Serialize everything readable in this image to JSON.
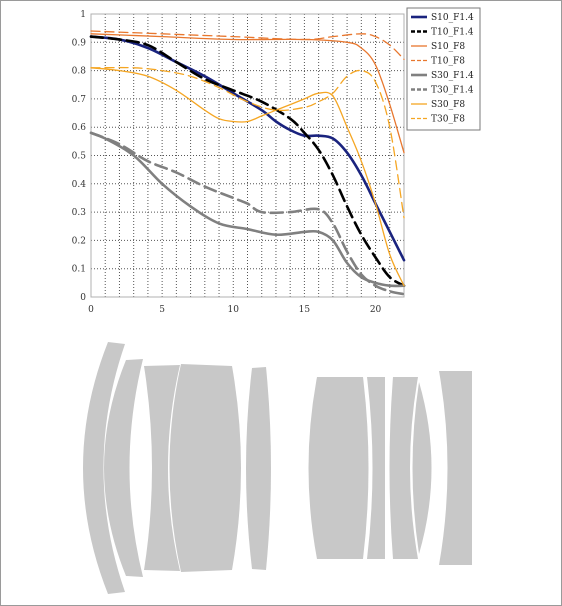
{
  "chart_data": {
    "type": "line",
    "title": "",
    "xlabel": "",
    "ylabel": "",
    "xlim": [
      0,
      22
    ],
    "ylim": [
      0,
      1
    ],
    "xticks": [
      0,
      5,
      10,
      15,
      20
    ],
    "yticks": [
      0,
      0.1,
      0.2,
      0.3,
      0.4,
      0.5,
      0.6,
      0.7,
      0.8,
      0.9,
      1
    ],
    "ytick_labels": [
      "0",
      "0.1",
      "0.2",
      "0.3",
      "0.4",
      "0.5",
      "0.6",
      "0.7",
      "0.8",
      "0.9",
      "1"
    ],
    "grid": "dotted",
    "legend_position": "right",
    "series": [
      {
        "name": "S10_F1.4",
        "color": "#1a237e",
        "style": "solid",
        "weight": "thick",
        "points": [
          [
            0,
            0.92
          ],
          [
            2,
            0.91
          ],
          [
            4,
            0.88
          ],
          [
            6,
            0.83
          ],
          [
            8,
            0.78
          ],
          [
            10,
            0.72
          ],
          [
            12,
            0.66
          ],
          [
            13,
            0.62
          ],
          [
            14,
            0.59
          ],
          [
            15,
            0.57
          ],
          [
            16,
            0.57
          ],
          [
            17,
            0.56
          ],
          [
            18,
            0.51
          ],
          [
            19,
            0.43
          ],
          [
            20,
            0.33
          ],
          [
            21,
            0.23
          ],
          [
            22,
            0.13
          ]
        ]
      },
      {
        "name": "T10_F1.4",
        "color": "#000000",
        "style": "dashed",
        "weight": "thick",
        "points": [
          [
            0,
            0.92
          ],
          [
            2,
            0.91
          ],
          [
            4,
            0.89
          ],
          [
            6,
            0.83
          ],
          [
            8,
            0.77
          ],
          [
            10,
            0.73
          ],
          [
            12,
            0.69
          ],
          [
            14,
            0.63
          ],
          [
            15,
            0.58
          ],
          [
            16,
            0.52
          ],
          [
            17,
            0.43
          ],
          [
            18,
            0.32
          ],
          [
            19,
            0.22
          ],
          [
            20,
            0.14
          ],
          [
            21,
            0.07
          ],
          [
            22,
            0.04
          ]
        ]
      },
      {
        "name": "S10_F8",
        "color": "#e8772e",
        "style": "solid",
        "weight": "thin",
        "points": [
          [
            0,
            0.93
          ],
          [
            5,
            0.92
          ],
          [
            10,
            0.91
          ],
          [
            15,
            0.91
          ],
          [
            18,
            0.9
          ],
          [
            19,
            0.88
          ],
          [
            20,
            0.82
          ],
          [
            21,
            0.68
          ],
          [
            22,
            0.51
          ]
        ]
      },
      {
        "name": "T10_F8",
        "color": "#e8772e",
        "style": "dashed",
        "weight": "thin",
        "points": [
          [
            0,
            0.94
          ],
          [
            5,
            0.93
          ],
          [
            10,
            0.92
          ],
          [
            15,
            0.91
          ],
          [
            17,
            0.92
          ],
          [
            19,
            0.93
          ],
          [
            20,
            0.92
          ],
          [
            21,
            0.89
          ],
          [
            22,
            0.84
          ]
        ]
      },
      {
        "name": "S30_F1.4",
        "color": "#808080",
        "style": "solid",
        "weight": "thick",
        "points": [
          [
            0,
            0.58
          ],
          [
            1,
            0.56
          ],
          [
            3,
            0.5
          ],
          [
            5,
            0.4
          ],
          [
            7,
            0.32
          ],
          [
            9,
            0.26
          ],
          [
            11,
            0.24
          ],
          [
            13,
            0.22
          ],
          [
            15,
            0.23
          ],
          [
            16,
            0.23
          ],
          [
            17,
            0.2
          ],
          [
            18,
            0.12
          ],
          [
            19,
            0.07
          ],
          [
            20,
            0.05
          ],
          [
            21,
            0.04
          ],
          [
            22,
            0.04
          ]
        ]
      },
      {
        "name": "T30_F1.4",
        "color": "#808080",
        "style": "dashed",
        "weight": "thick",
        "points": [
          [
            0,
            0.58
          ],
          [
            2,
            0.54
          ],
          [
            4,
            0.48
          ],
          [
            6,
            0.44
          ],
          [
            8,
            0.39
          ],
          [
            10,
            0.35
          ],
          [
            11,
            0.33
          ],
          [
            12,
            0.3
          ],
          [
            14,
            0.3
          ],
          [
            16,
            0.31
          ],
          [
            17,
            0.26
          ],
          [
            18,
            0.16
          ],
          [
            19,
            0.08
          ],
          [
            20,
            0.04
          ],
          [
            21,
            0.02
          ],
          [
            22,
            0.01
          ]
        ]
      },
      {
        "name": "S30_F8",
        "color": "#f5a623",
        "style": "solid",
        "weight": "thin",
        "points": [
          [
            0,
            0.81
          ],
          [
            2,
            0.8
          ],
          [
            4,
            0.78
          ],
          [
            6,
            0.73
          ],
          [
            8,
            0.66
          ],
          [
            9,
            0.63
          ],
          [
            10,
            0.62
          ],
          [
            11,
            0.62
          ],
          [
            12,
            0.64
          ],
          [
            13,
            0.66
          ],
          [
            14,
            0.68
          ],
          [
            15,
            0.7
          ],
          [
            16,
            0.72
          ],
          [
            17,
            0.71
          ],
          [
            18,
            0.6
          ],
          [
            19,
            0.48
          ],
          [
            20,
            0.33
          ],
          [
            21,
            0.15
          ],
          [
            22,
            0.04
          ]
        ]
      },
      {
        "name": "T30_F8",
        "color": "#f5a623",
        "style": "dashed",
        "weight": "thin",
        "points": [
          [
            0,
            0.81
          ],
          [
            3,
            0.81
          ],
          [
            5,
            0.8
          ],
          [
            7,
            0.78
          ],
          [
            9,
            0.74
          ],
          [
            11,
            0.69
          ],
          [
            13,
            0.66
          ],
          [
            15,
            0.67
          ],
          [
            16,
            0.69
          ],
          [
            17,
            0.72
          ],
          [
            18,
            0.78
          ],
          [
            19,
            0.8
          ],
          [
            20,
            0.76
          ],
          [
            21,
            0.6
          ],
          [
            22,
            0.28
          ]
        ]
      }
    ]
  },
  "lens_diagram": {
    "fill_color": "#c8c8c8"
  }
}
